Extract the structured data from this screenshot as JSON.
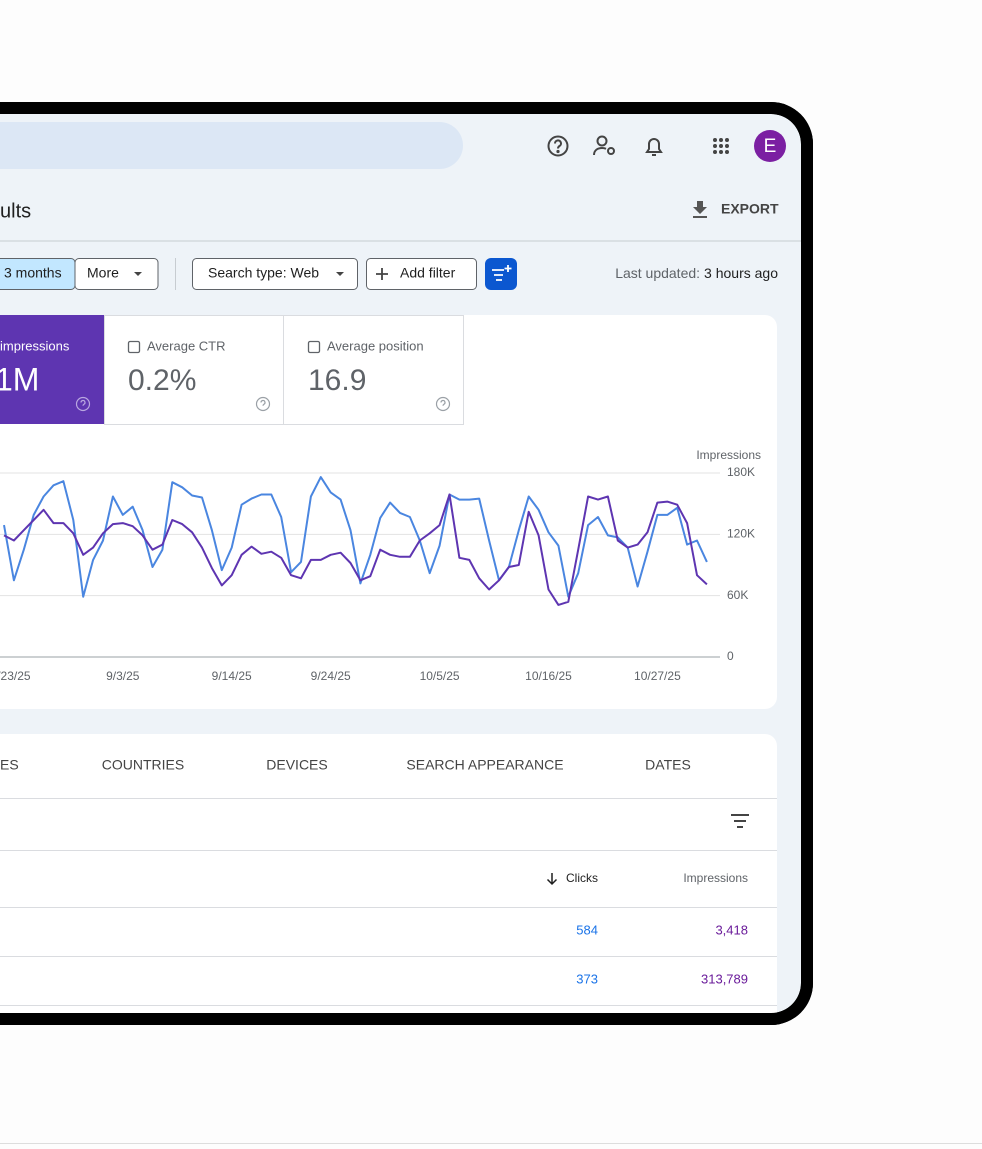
{
  "header": {
    "avatar": "E"
  },
  "page": {
    "title": "ults",
    "export": "EXPORT"
  },
  "filters": {
    "date_range": "3 months",
    "more": "More",
    "search_type": "Search type: Web",
    "add_filter": "Add filter",
    "last_updated_label": "Last updated:",
    "last_updated_value": "3 hours ago"
  },
  "metrics": [
    {
      "label": "impressions",
      "value": "1M"
    },
    {
      "label": "Average CTR",
      "value": "0.2%"
    },
    {
      "label": "Average position",
      "value": "16.9"
    }
  ],
  "chart_data": {
    "type": "line",
    "y_label": "Impressions",
    "categories": [
      null,
      "/23/25",
      null,
      null,
      null,
      null,
      null,
      null,
      null,
      null,
      null,
      null,
      "9/3/25",
      null,
      null,
      null,
      null,
      null,
      null,
      null,
      null,
      null,
      null,
      "9/14/25",
      null,
      null,
      null,
      null,
      null,
      null,
      null,
      null,
      null,
      "9/24/25",
      null,
      null,
      null,
      null,
      null,
      null,
      null,
      null,
      null,
      null,
      "10/5/25",
      null,
      null,
      null,
      null,
      null,
      null,
      null,
      null,
      null,
      null,
      "10/16/25",
      null,
      null,
      null,
      null,
      null,
      null,
      null,
      null,
      null,
      null,
      "10/27/25",
      null,
      null,
      null,
      null,
      null
    ],
    "series": [
      {
        "color": "#4a86e0",
        "values": [
          129000,
          75000,
          105000,
          139000,
          157000,
          168000,
          172000,
          134000,
          59000,
          95000,
          114000,
          157000,
          139000,
          147000,
          124000,
          88000,
          105000,
          171000,
          166000,
          158000,
          156000,
          124000,
          85000,
          107000,
          149000,
          155000,
          159000,
          159000,
          137000,
          83000,
          93000,
          157000,
          176000,
          161000,
          154000,
          124000,
          72000,
          100000,
          136000,
          151000,
          141000,
          137000,
          114000,
          82000,
          109000,
          159000,
          154000,
          154000,
          155000,
          114000,
          75000,
          88000,
          124000,
          157000,
          144000,
          122000,
          109000,
          59000,
          82000,
          129000,
          137000,
          119000,
          117000,
          107000,
          69000,
          103000,
          139000,
          139000,
          146000,
          110000,
          114000,
          93000
        ]
      },
      {
        "color": "#5e35b1",
        "values": [
          119000,
          114000,
          124000,
          134000,
          144000,
          131000,
          131000,
          121000,
          100000,
          107000,
          121000,
          130000,
          131000,
          128000,
          119000,
          105000,
          110000,
          134000,
          130000,
          122000,
          107000,
          87000,
          70000,
          80000,
          100000,
          108000,
          101000,
          103000,
          97000,
          80000,
          77000,
          95000,
          95000,
          100000,
          102000,
          92000,
          75000,
          79000,
          105000,
          100000,
          98000,
          98000,
          114000,
          121000,
          129000,
          159000,
          97000,
          95000,
          77000,
          66000,
          75000,
          88000,
          90000,
          142000,
          119000,
          66000,
          51000,
          54000,
          105000,
          157000,
          154000,
          157000,
          114000,
          107000,
          110000,
          122000,
          151000,
          152000,
          149000,
          131000,
          80000,
          71000
        ]
      }
    ],
    "ylim": [
      0,
      180000
    ],
    "yticks": [
      0,
      {
        "value": 60000,
        "label": "60K"
      },
      {
        "value": 120000,
        "label": "120K"
      },
      {
        "value": 180000,
        "label": "180K"
      }
    ],
    "grid": true
  },
  "tabs": [
    "ES",
    "COUNTRIES",
    "DEVICES",
    "SEARCH APPEARANCE",
    "DATES"
  ],
  "table": {
    "columns": [
      "Clicks",
      "Impressions"
    ],
    "rows": [
      [
        "584",
        "3,418"
      ],
      [
        "373",
        "313,789"
      ]
    ]
  }
}
